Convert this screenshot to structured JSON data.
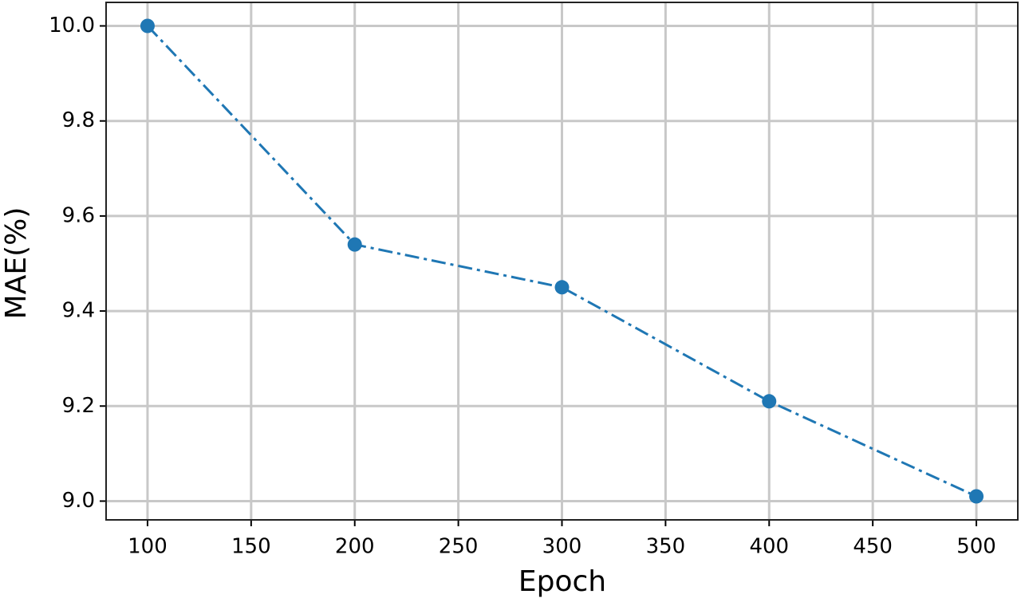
{
  "chart_data": {
    "type": "line",
    "x_label": "Epoch",
    "y_label": "MAE(%)",
    "x": [
      100,
      200,
      300,
      400,
      500
    ],
    "series": [
      {
        "color": "#1f77b4",
        "values": [
          10.0,
          9.54,
          9.45,
          9.21,
          9.01
        ]
      }
    ],
    "xlim": [
      80,
      520
    ],
    "xticks": [
      100,
      150,
      200,
      250,
      300,
      350,
      400,
      450,
      500
    ],
    "ylim": [
      8.9605,
      10.0495
    ],
    "yticks": [
      {
        "value": 9.0,
        "label": "9.0"
      },
      9.2,
      9.4,
      9.6,
      9.8,
      {
        "value": 10.0,
        "label": "10.0"
      }
    ],
    "grid": true,
    "line_style": "dashdot",
    "marker": "circle"
  }
}
